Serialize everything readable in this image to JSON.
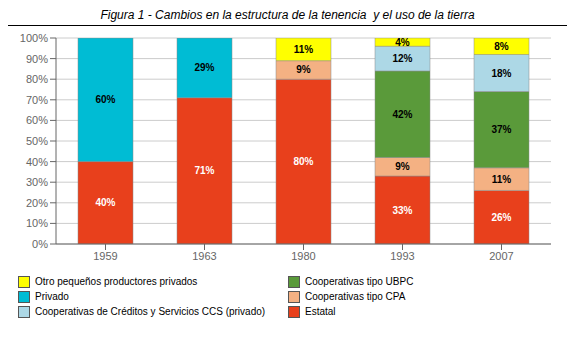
{
  "chart_data": {
    "type": "bar",
    "title": "Figura 1 - Cambios en la estructura de la tenencia  y el uso de la tierra",
    "categories": [
      "1959",
      "1963",
      "1980",
      "1993",
      "2007"
    ],
    "stacked": true,
    "data_labels": true,
    "grid": true,
    "legend": "bottom",
    "ylim": [
      0,
      100
    ],
    "yticks": [
      {
        "value": 0,
        "label": "0%"
      },
      {
        "value": 10,
        "label": "10%"
      },
      {
        "value": 20,
        "label": "20%"
      },
      {
        "value": 30,
        "label": "30%"
      },
      {
        "value": 40,
        "label": "40%"
      },
      {
        "value": 50,
        "label": "50%"
      },
      {
        "value": 60,
        "label": "60%"
      },
      {
        "value": 70,
        "label": "70%"
      },
      {
        "value": 80,
        "label": "80%"
      },
      {
        "value": 90,
        "label": "90%"
      },
      {
        "value": 100,
        "label": "100%"
      }
    ],
    "series": [
      {
        "name": "Estatal",
        "color": "#e8401c",
        "values": [
          40,
          71,
          80,
          33,
          26
        ],
        "value_labels": [
          "40%",
          "71%",
          "80%",
          "33%",
          "26%"
        ]
      },
      {
        "name": "Cooperativas tipo CPA",
        "color": "#f4b183",
        "values": [
          0,
          0,
          9,
          9,
          11
        ],
        "value_labels": [
          null,
          null,
          "9%",
          "9%",
          "11%"
        ]
      },
      {
        "name": "Cooperativas tipo UBPC",
        "color": "#5a9a3a",
        "values": [
          0,
          0,
          0,
          42,
          37
        ],
        "value_labels": [
          null,
          null,
          null,
          "42%",
          "37%"
        ]
      },
      {
        "name": "Cooperativas de Créditos y Servicios CCS (privado)",
        "color": "#add8e6",
        "values": [
          0,
          0,
          0,
          12,
          18
        ],
        "value_labels": [
          null,
          null,
          null,
          "12%",
          "18%"
        ]
      },
      {
        "name": "Privado",
        "color": "#00bcd4",
        "values": [
          60,
          29,
          0,
          0,
          0
        ],
        "value_labels": [
          "60%",
          "29%",
          null,
          null,
          null
        ]
      },
      {
        "name": "Otro pequeños productores privados",
        "color": "#ffff00",
        "values": [
          0,
          0,
          11,
          4,
          8
        ],
        "value_labels": [
          null,
          null,
          "11%",
          "4%",
          "8%"
        ]
      }
    ]
  }
}
